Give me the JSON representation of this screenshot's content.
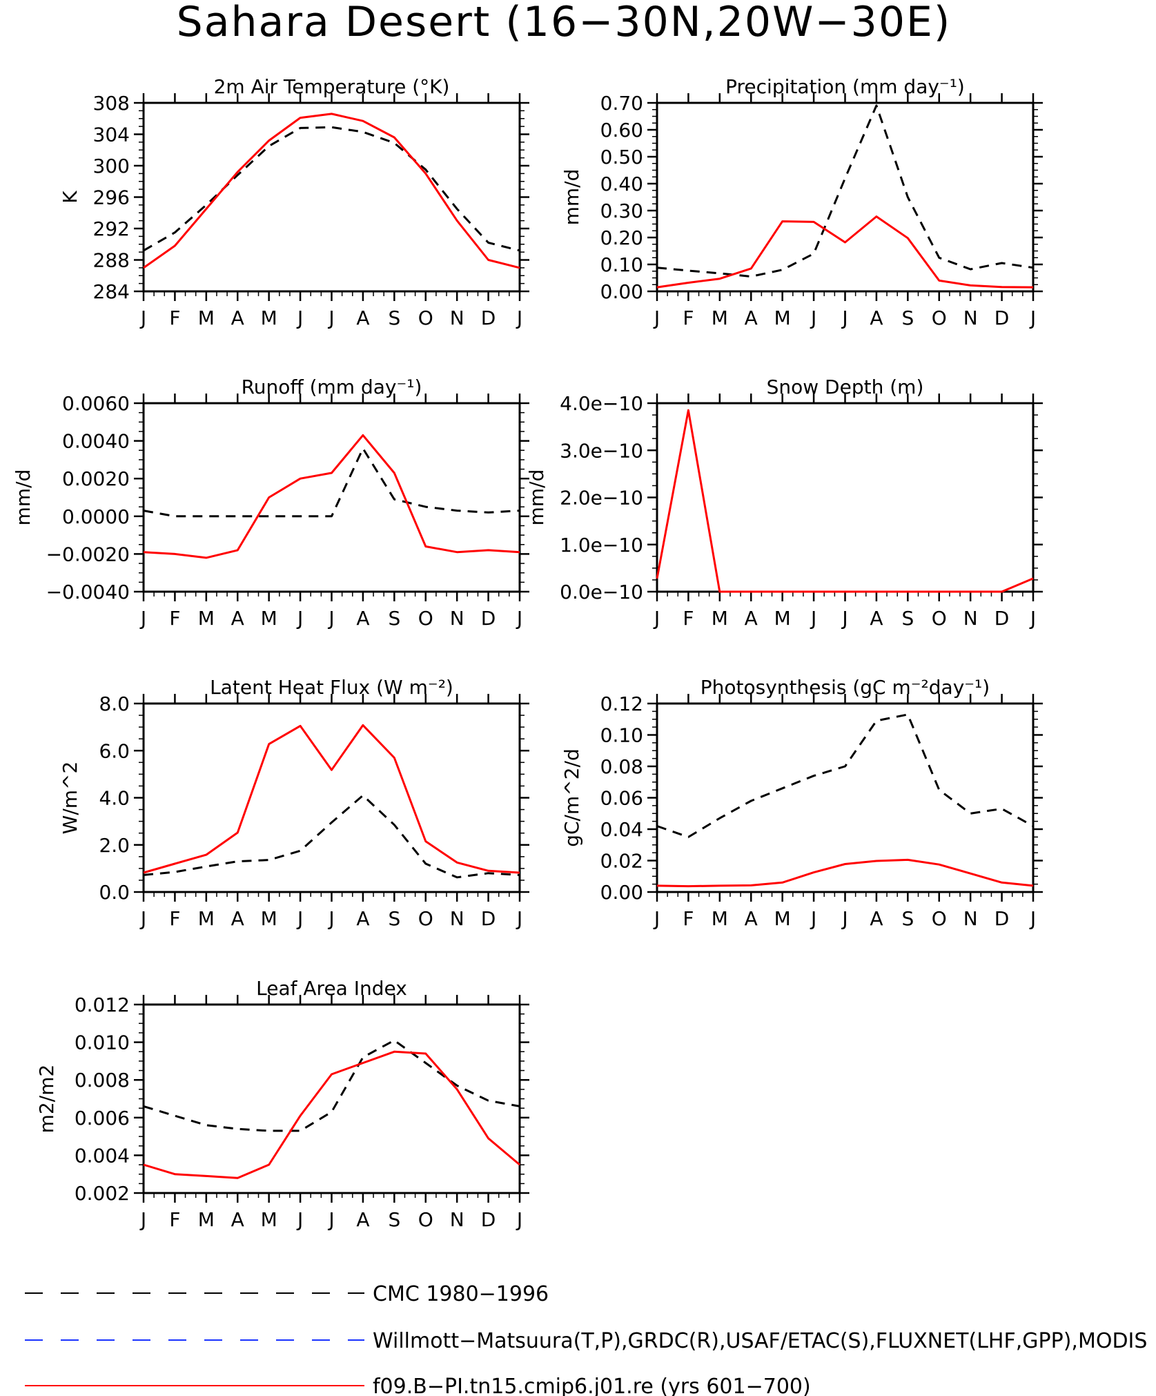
{
  "figure_title": "Sahara Desert (16−30N,20W−30E)",
  "months": [
    "J",
    "F",
    "M",
    "A",
    "M",
    "J",
    "J",
    "A",
    "S",
    "O",
    "N",
    "D",
    "J"
  ],
  "colors": {
    "obs_cmc": "#000000",
    "obs_wm": "#1a33ff",
    "model": "#ff0000"
  },
  "legend": [
    {
      "label": "CMC 1980−1996",
      "color": "#000000",
      "dash": true
    },
    {
      "label": "Willmott−Matsuura(T,P),GRDC(R),USAF/ETAC(S),FLUXNET(LHF,GPP),MODIS",
      "color": "#1a33ff",
      "dash": true
    },
    {
      "label": "f09.B−PI.tn15.cmip6.j01.re (yrs 601−700)",
      "color": "#ff0000",
      "dash": false
    }
  ],
  "chart_data": [
    {
      "type": "line",
      "title": "2m Air Temperature (°K)",
      "ylabel": "K",
      "ylim": [
        284,
        308
      ],
      "yticks": [
        "284",
        "288",
        "292",
        "296",
        "300",
        "304",
        "308"
      ],
      "series": [
        {
          "name": "CMC 1980−1996",
          "values": [
            289.2,
            291.5,
            295.0,
            298.8,
            302.5,
            304.8,
            304.9,
            304.3,
            302.9,
            299.5,
            294.5,
            290.2,
            289.2
          ]
        },
        {
          "name": "f09.B−PI.tn15.cmip6.j01.re (yrs 601−700)",
          "values": [
            287.0,
            289.8,
            294.5,
            299.2,
            303.2,
            306.1,
            306.6,
            305.7,
            303.6,
            299.0,
            293.0,
            288.0,
            287.0
          ]
        }
      ]
    },
    {
      "type": "line",
      "title": "Precipitation (mm day⁻¹)",
      "ylabel": "mm/d",
      "ylim": [
        0,
        0.7
      ],
      "yticks": [
        "0.00",
        "0.10",
        "0.20",
        "0.30",
        "0.40",
        "0.50",
        "0.60",
        "0.70"
      ],
      "series": [
        {
          "name": "CMC 1980−1996",
          "values": [
            0.088,
            0.077,
            0.067,
            0.055,
            0.08,
            0.14,
            0.42,
            0.69,
            0.35,
            0.125,
            0.082,
            0.105,
            0.088
          ]
        },
        {
          "name": "f09.B−PI.tn15.cmip6.j01.re (yrs 601−700)",
          "values": [
            0.015,
            0.032,
            0.047,
            0.085,
            0.26,
            0.258,
            0.182,
            0.278,
            0.198,
            0.04,
            0.022,
            0.016,
            0.015
          ]
        }
      ]
    },
    {
      "type": "line",
      "title": "Runoff (mm day⁻¹)",
      "ylabel": "mm/d",
      "ylim": [
        -0.004,
        0.006
      ],
      "yticks": [
        "−0.0040",
        "−0.0020",
        "0.0000",
        "0.0020",
        "0.0040",
        "0.0060"
      ],
      "series": [
        {
          "name": "CMC 1980−1996",
          "values": [
            0.0003,
            0.0,
            0.0,
            0.0,
            0.0,
            0.0,
            0.0,
            0.0036,
            0.0009,
            0.0005,
            0.0003,
            0.0002,
            0.0003
          ]
        },
        {
          "name": "f09.B−PI.tn15.cmip6.j01.re (yrs 601−700)",
          "values": [
            -0.0019,
            -0.002,
            -0.0022,
            -0.0018,
            0.001,
            0.002,
            0.0023,
            0.0043,
            0.0023,
            -0.0016,
            -0.0019,
            -0.0018,
            -0.0019
          ]
        }
      ]
    },
    {
      "type": "line",
      "title": "Snow Depth (m)",
      "ylabel": "mm/d",
      "ylim": [
        0,
        4e-10
      ],
      "yticks": [
        "0.0e−10",
        "1.0e−10",
        "2.0e−10",
        "3.0e−10",
        "4.0e−10"
      ],
      "series": [
        {
          "name": "CMC 1980−1996",
          "values": [
            0,
            0,
            0,
            0,
            0,
            0,
            0,
            0,
            0,
            0,
            0,
            0,
            0
          ]
        },
        {
          "name": "f09.B−PI.tn15.cmip6.j01.re (yrs 601−700)",
          "values": [
            2.8e-11,
            3.85e-10,
            0,
            0,
            0,
            0,
            0,
            0,
            0,
            0,
            0,
            0,
            2.8e-11
          ]
        }
      ]
    },
    {
      "type": "line",
      "title": "Latent Heat Flux (W m⁻²)",
      "ylabel": "W/m^2",
      "ylim": [
        0,
        8
      ],
      "yticks": [
        "0.0",
        "2.0",
        "4.0",
        "6.0",
        "8.0"
      ],
      "series": [
        {
          "name": "CMC 1980−1996",
          "values": [
            0.72,
            0.85,
            1.08,
            1.3,
            1.36,
            1.75,
            2.95,
            4.1,
            2.85,
            1.2,
            0.62,
            0.8,
            0.72
          ]
        },
        {
          "name": "f09.B−PI.tn15.cmip6.j01.re (yrs 601−700)",
          "values": [
            0.82,
            1.2,
            1.58,
            2.52,
            6.28,
            7.05,
            5.18,
            7.08,
            5.7,
            2.15,
            1.25,
            0.9,
            0.82
          ]
        }
      ]
    },
    {
      "type": "line",
      "title": "Photosynthesis (gC m⁻²day⁻¹)",
      "ylabel": "gC/m^2/d",
      "ylim": [
        0,
        0.12
      ],
      "yticks": [
        "0.00",
        "0.02",
        "0.04",
        "0.06",
        "0.08",
        "0.10",
        "0.12"
      ],
      "series": [
        {
          "name": "CMC 1980−1996",
          "values": [
            0.042,
            0.035,
            0.047,
            0.058,
            0.066,
            0.074,
            0.08,
            0.109,
            0.113,
            0.065,
            0.05,
            0.053,
            0.042
          ]
        },
        {
          "name": "f09.B−PI.tn15.cmip6.j01.re (yrs 601−700)",
          "values": [
            0.004,
            0.0037,
            0.004,
            0.0042,
            0.006,
            0.0125,
            0.0178,
            0.0198,
            0.0205,
            0.0175,
            0.0118,
            0.006,
            0.004
          ]
        }
      ]
    },
    {
      "type": "line",
      "title": "Leaf Area Index",
      "ylabel": "m2/m2",
      "ylim": [
        0.002,
        0.012
      ],
      "yticks": [
        "0.002",
        "0.004",
        "0.006",
        "0.008",
        "0.010",
        "0.012"
      ],
      "series": [
        {
          "name": "CMC 1980−1996",
          "values": [
            0.0066,
            0.0061,
            0.0056,
            0.0054,
            0.0053,
            0.0053,
            0.0063,
            0.0092,
            0.0101,
            0.0089,
            0.0077,
            0.0069,
            0.0066
          ]
        },
        {
          "name": "f09.B−PI.tn15.cmip6.j01.re (yrs 601−700)",
          "values": [
            0.0035,
            0.003,
            0.0029,
            0.0028,
            0.0035,
            0.0061,
            0.0083,
            0.0089,
            0.0095,
            0.0094,
            0.0075,
            0.0049,
            0.0035
          ]
        }
      ]
    }
  ]
}
